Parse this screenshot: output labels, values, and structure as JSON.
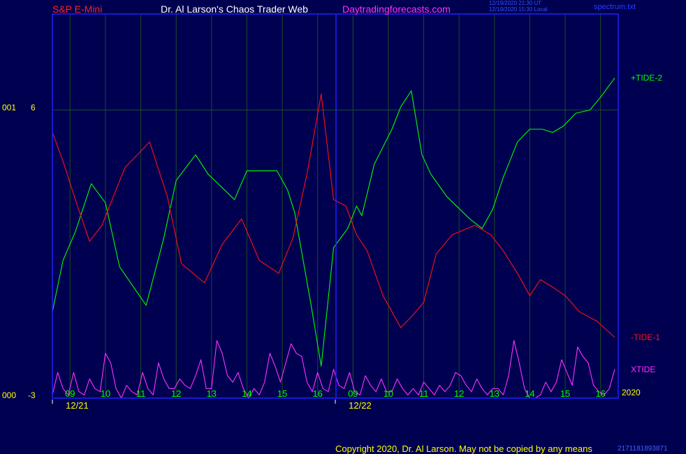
{
  "header": {
    "symbol": "S&P E-Mini",
    "title": "Dr. Al Larson's Chaos Trader Web",
    "site": "Daytradingforecasts.com",
    "stamp_line1": "12/19/2020 21:30 UT",
    "stamp_line2": "12/19/2020 15:30 Local",
    "file": "spectrum.txt"
  },
  "footer": {
    "copyright": "Copyright 2020, Dr. Al Larson. May not be copied by any means",
    "code": "2171181893871"
  },
  "colors": {
    "background": "#000050",
    "frame": "#2020ff",
    "grid": "#1f4a22",
    "tide_plus": "#00ff00",
    "tide_minus": "#ff1010",
    "xtide": "#ff30ff",
    "axis_text": "#ffff00",
    "hour_text": "#00ff00"
  },
  "chart_data": {
    "type": "line",
    "y_axis": {
      "range": [
        -3,
        9
      ],
      "labels": [
        {
          "value": 6,
          "prefix": "001",
          "text": "6"
        },
        {
          "value": -3,
          "prefix": "000",
          "text": "-3"
        }
      ]
    },
    "x_axis": {
      "range": [
        0,
        32
      ],
      "hour_labels": [
        {
          "x": 1,
          "text": "09"
        },
        {
          "x": 3,
          "text": "10"
        },
        {
          "x": 5,
          "text": "11"
        },
        {
          "x": 7,
          "text": "12"
        },
        {
          "x": 9,
          "text": "13"
        },
        {
          "x": 11,
          "text": "14"
        },
        {
          "x": 13,
          "text": "15"
        },
        {
          "x": 15,
          "text": "16"
        },
        {
          "x": 17,
          "text": "09"
        },
        {
          "x": 19,
          "text": "10"
        },
        {
          "x": 21,
          "text": "11"
        },
        {
          "x": 23,
          "text": "12"
        },
        {
          "x": 25,
          "text": "13"
        },
        {
          "x": 27,
          "text": "14"
        },
        {
          "x": 29,
          "text": "15"
        },
        {
          "x": 31,
          "text": "16"
        }
      ],
      "date_labels": [
        {
          "x": 1.4,
          "text": "12/21"
        },
        {
          "x": 17.4,
          "text": "12/22"
        }
      ],
      "year_label": "2020",
      "day_divider_x": 16
    },
    "series": [
      {
        "name": "+TIDE-2",
        "color": "#00ff00",
        "points": [
          [
            0,
            -0.3
          ],
          [
            0.6,
            1.3
          ],
          [
            1.3,
            2.2
          ],
          [
            2.2,
            3.7
          ],
          [
            3,
            3.1
          ],
          [
            3.8,
            1.1
          ],
          [
            5.3,
            -0.1
          ],
          [
            6.3,
            2.0
          ],
          [
            7,
            3.8
          ],
          [
            8.1,
            4.6
          ],
          [
            8.8,
            4.0
          ],
          [
            10.3,
            3.2
          ],
          [
            11,
            4.1
          ],
          [
            11.7,
            4.1
          ],
          [
            12.7,
            4.1
          ],
          [
            13.3,
            3.5
          ],
          [
            13.7,
            2.8
          ],
          [
            14.6,
            0.0
          ],
          [
            15.2,
            -2.0
          ],
          [
            15.9,
            1.7
          ],
          [
            16.7,
            2.3
          ],
          [
            17.2,
            3.0
          ],
          [
            17.5,
            2.7
          ],
          [
            18.2,
            4.3
          ],
          [
            19.2,
            5.4
          ],
          [
            19.7,
            6.1
          ],
          [
            20.3,
            6.6
          ],
          [
            20.9,
            4.6
          ],
          [
            21.4,
            4.0
          ],
          [
            22.3,
            3.3
          ],
          [
            23.6,
            2.6
          ],
          [
            24.3,
            2.3
          ],
          [
            24.9,
            2.9
          ],
          [
            25.5,
            3.9
          ],
          [
            26.3,
            5.0
          ],
          [
            27,
            5.4
          ],
          [
            27.7,
            5.4
          ],
          [
            28.3,
            5.3
          ],
          [
            28.9,
            5.5
          ],
          [
            29.6,
            5.9
          ],
          [
            30.4,
            6.0
          ],
          [
            31,
            6.4
          ],
          [
            31.8,
            7.0
          ]
        ]
      },
      {
        "name": "-TIDE-1",
        "color": "#ff1010",
        "points": [
          [
            0,
            5.3
          ],
          [
            0.6,
            4.4
          ],
          [
            1.3,
            3.2
          ],
          [
            2.1,
            1.9
          ],
          [
            2.8,
            2.4
          ],
          [
            4.1,
            4.2
          ],
          [
            5.5,
            5.0
          ],
          [
            6.5,
            3.3
          ],
          [
            7.3,
            1.2
          ],
          [
            8.6,
            0.6
          ],
          [
            9.6,
            1.8
          ],
          [
            10.7,
            2.6
          ],
          [
            11.7,
            1.3
          ],
          [
            12.8,
            0.9
          ],
          [
            13.6,
            2.0
          ],
          [
            14.4,
            4.0
          ],
          [
            15.2,
            6.5
          ],
          [
            15.9,
            3.2
          ],
          [
            16.6,
            3.0
          ],
          [
            17.2,
            2.1
          ],
          [
            17.8,
            1.6
          ],
          [
            18.7,
            0.2
          ],
          [
            19.7,
            -0.8
          ],
          [
            20.4,
            -0.4
          ],
          [
            21,
            0.0
          ],
          [
            21.7,
            1.5
          ],
          [
            22.6,
            2.1
          ],
          [
            23.9,
            2.4
          ],
          [
            24.8,
            2.1
          ],
          [
            25.5,
            1.6
          ],
          [
            26.3,
            0.9
          ],
          [
            27,
            0.2
          ],
          [
            27.6,
            0.7
          ],
          [
            28.2,
            0.5
          ],
          [
            29,
            0.2
          ],
          [
            29.8,
            -0.3
          ],
          [
            30.8,
            -0.6
          ],
          [
            31.8,
            -1.1
          ]
        ]
      },
      {
        "name": "XTIDE",
        "color": "#ff30ff",
        "points": [
          [
            0,
            -2.9
          ],
          [
            0.3,
            -2.2
          ],
          [
            0.6,
            -2.7
          ],
          [
            0.9,
            -2.9
          ],
          [
            1.2,
            -2.2
          ],
          [
            1.5,
            -2.8
          ],
          [
            1.8,
            -2.9
          ],
          [
            2.1,
            -2.4
          ],
          [
            2.4,
            -2.7
          ],
          [
            2.7,
            -2.8
          ],
          [
            3.0,
            -1.6
          ],
          [
            3.3,
            -1.9
          ],
          [
            3.6,
            -2.7
          ],
          [
            3.9,
            -3.0
          ],
          [
            4.2,
            -2.6
          ],
          [
            4.5,
            -2.8
          ],
          [
            4.8,
            -2.9
          ],
          [
            5.1,
            -2.2
          ],
          [
            5.4,
            -2.7
          ],
          [
            5.7,
            -2.9
          ],
          [
            6.0,
            -1.9
          ],
          [
            6.3,
            -2.4
          ],
          [
            6.6,
            -2.7
          ],
          [
            6.9,
            -2.7
          ],
          [
            7.2,
            -2.4
          ],
          [
            7.5,
            -2.6
          ],
          [
            7.8,
            -2.7
          ],
          [
            8.1,
            -2.3
          ],
          [
            8.4,
            -1.8
          ],
          [
            8.7,
            -2.7
          ],
          [
            9.0,
            -2.7
          ],
          [
            9.3,
            -1.2
          ],
          [
            9.6,
            -1.6
          ],
          [
            9.9,
            -2.3
          ],
          [
            10.2,
            -2.5
          ],
          [
            10.5,
            -2.2
          ],
          [
            10.8,
            -2.7
          ],
          [
            11.1,
            -3.0
          ],
          [
            11.4,
            -2.7
          ],
          [
            11.7,
            -2.9
          ],
          [
            12.0,
            -2.5
          ],
          [
            12.3,
            -1.6
          ],
          [
            12.6,
            -2.0
          ],
          [
            12.9,
            -2.5
          ],
          [
            13.2,
            -1.9
          ],
          [
            13.5,
            -1.3
          ],
          [
            13.8,
            -1.6
          ],
          [
            14.1,
            -1.7
          ],
          [
            14.4,
            -2.5
          ],
          [
            14.7,
            -2.8
          ],
          [
            15.0,
            -2.2
          ],
          [
            15.3,
            -2.7
          ],
          [
            15.6,
            -2.8
          ],
          [
            15.9,
            -2.1
          ],
          [
            16.2,
            -2.6
          ],
          [
            16.5,
            -2.7
          ],
          [
            16.8,
            -2.2
          ],
          [
            17.1,
            -2.8
          ],
          [
            17.4,
            -2.9
          ],
          [
            17.7,
            -2.3
          ],
          [
            18.0,
            -2.6
          ],
          [
            18.3,
            -2.8
          ],
          [
            18.6,
            -2.4
          ],
          [
            18.9,
            -2.8
          ],
          [
            19.2,
            -2.8
          ],
          [
            19.5,
            -2.4
          ],
          [
            19.8,
            -2.7
          ],
          [
            20.1,
            -2.9
          ],
          [
            20.4,
            -2.7
          ],
          [
            20.7,
            -2.9
          ],
          [
            21.0,
            -2.5
          ],
          [
            21.3,
            -2.7
          ],
          [
            21.6,
            -2.9
          ],
          [
            21.9,
            -2.6
          ],
          [
            22.2,
            -2.8
          ],
          [
            22.5,
            -2.6
          ],
          [
            22.8,
            -2.2
          ],
          [
            23.1,
            -2.3
          ],
          [
            23.4,
            -2.6
          ],
          [
            23.7,
            -2.8
          ],
          [
            24.0,
            -2.4
          ],
          [
            24.3,
            -2.7
          ],
          [
            24.6,
            -2.9
          ],
          [
            24.9,
            -2.7
          ],
          [
            25.2,
            -2.7
          ],
          [
            25.5,
            -2.9
          ],
          [
            25.8,
            -2.3
          ],
          [
            26.1,
            -1.2
          ],
          [
            26.4,
            -1.9
          ],
          [
            26.7,
            -2.7
          ],
          [
            27.0,
            -3.0
          ],
          [
            27.3,
            -3.0
          ],
          [
            27.6,
            -2.9
          ],
          [
            27.9,
            -2.5
          ],
          [
            28.2,
            -2.8
          ],
          [
            28.5,
            -2.5
          ],
          [
            28.8,
            -1.8
          ],
          [
            29.1,
            -2.2
          ],
          [
            29.4,
            -2.6
          ],
          [
            29.7,
            -1.4
          ],
          [
            30.0,
            -1.7
          ],
          [
            30.3,
            -1.9
          ],
          [
            30.6,
            -2.6
          ],
          [
            30.9,
            -2.8
          ],
          [
            31.2,
            -2.9
          ],
          [
            31.5,
            -2.7
          ],
          [
            31.8,
            -2.1
          ]
        ]
      }
    ]
  }
}
